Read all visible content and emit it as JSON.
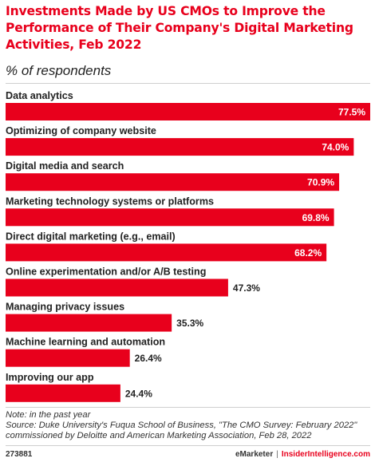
{
  "title": "Investments Made by US CMOs to Improve the Performance of Their Company's Digital Marketing Activities, Feb 2022",
  "subtitle": "% of respondents",
  "chart_data": {
    "type": "bar",
    "orientation": "horizontal",
    "title": "Investments Made by US CMOs to Improve the Performance of Their Company's Digital Marketing Activities, Feb 2022",
    "subtitle": "% of respondents",
    "categories": [
      "Data analytics",
      "Optimizing of company website",
      "Digital media and search",
      "Marketing technology systems or platforms",
      "Direct digital marketing (e.g., email)",
      "Online experimentation and/or A/B testing",
      "Managing privacy issues",
      "Machine learning and automation",
      "Improving our app"
    ],
    "values": [
      77.5,
      74.0,
      70.9,
      69.8,
      68.2,
      47.3,
      35.3,
      26.4,
      24.4
    ],
    "value_labels": [
      "77.5%",
      "74.0%",
      "70.9%",
      "69.8%",
      "68.2%",
      "47.3%",
      "35.3%",
      "26.4%",
      "24.4%"
    ],
    "xlim": [
      0,
      77.5
    ],
    "grid": false,
    "bar_color": "#e8001c"
  },
  "notes": {
    "note": "Note: in the past year",
    "source_line1": "Source: Duke University's Fuqua School of Business, \"The CMO Survey: February 2022\"",
    "source_line2": "commissioned by Deloitte and American Marketing Association, Feb 28, 2022"
  },
  "footer": {
    "id": "273881",
    "brand_left": "eMarketer",
    "separator": "|",
    "brand_right": "InsiderIntelligence.com"
  }
}
